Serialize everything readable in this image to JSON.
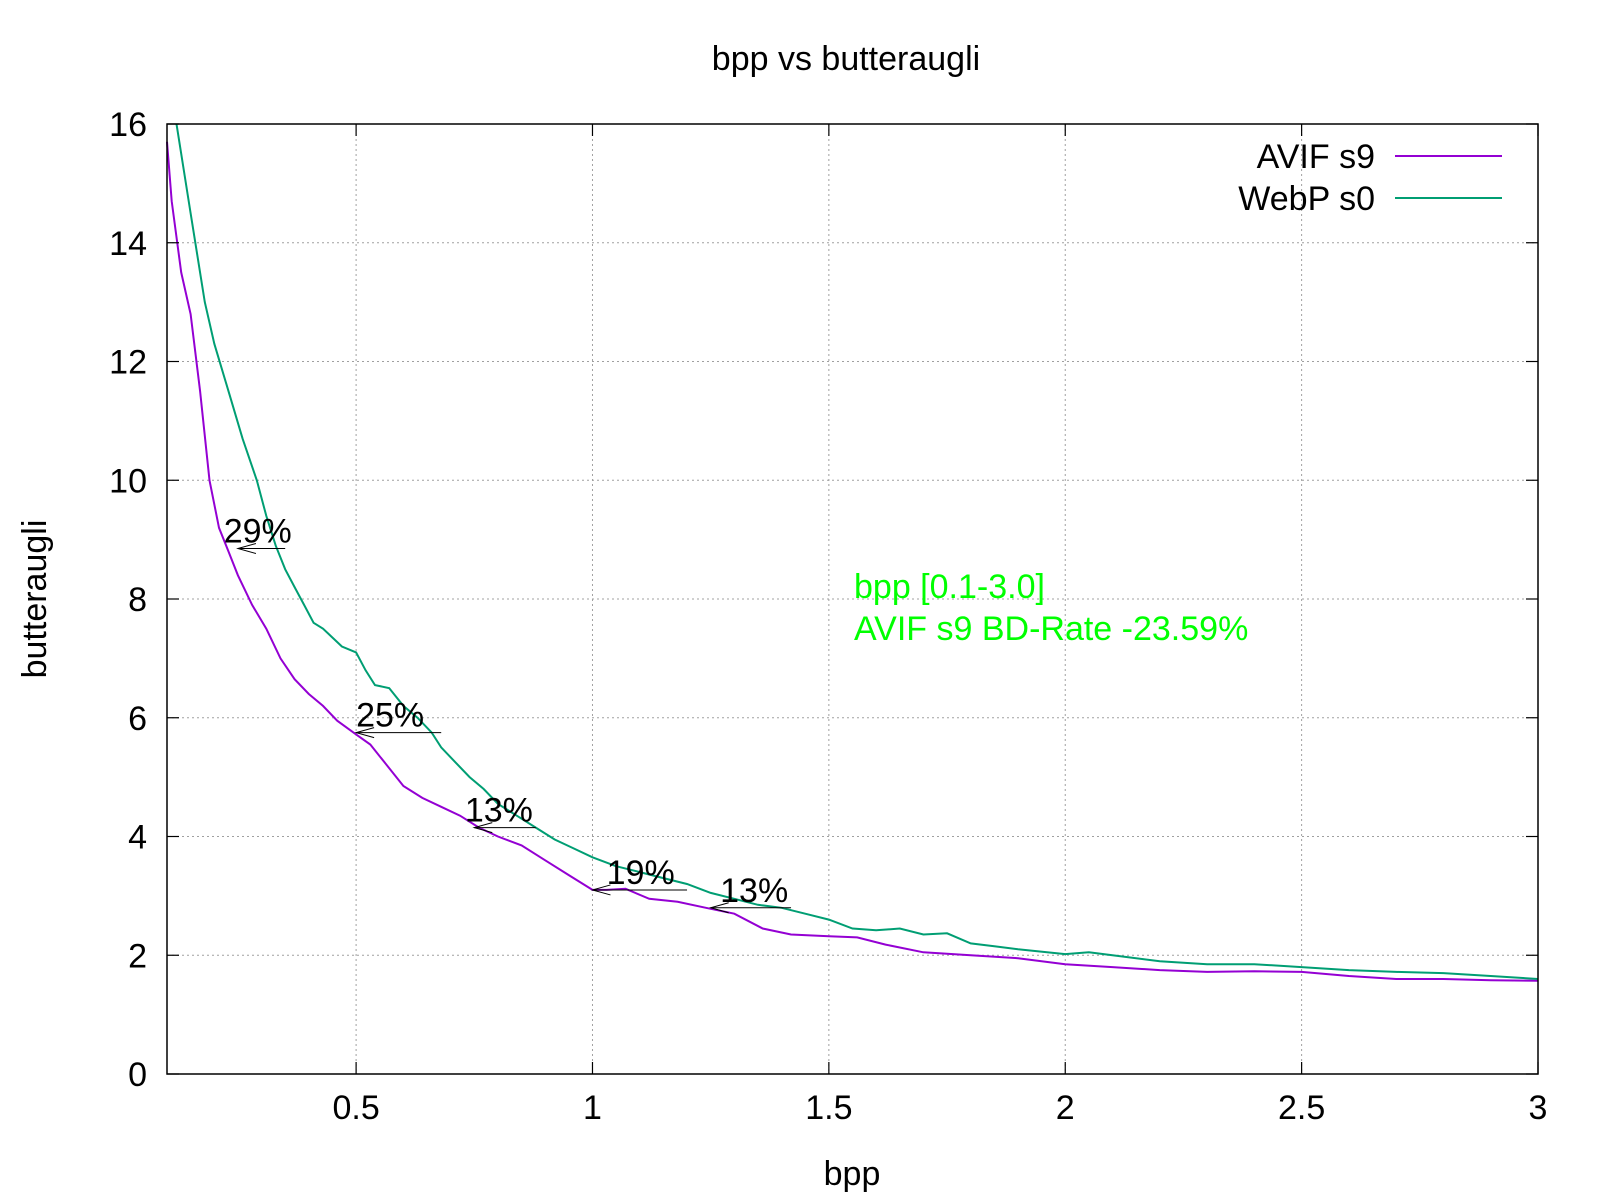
{
  "chart_data": {
    "type": "line",
    "title": "bpp vs butteraugli",
    "xlabel": "bpp",
    "ylabel": "butteraugli",
    "xlim": [
      0.1,
      3.0
    ],
    "ylim": [
      0,
      16
    ],
    "x_ticks": [
      0.5,
      1,
      1.5,
      2,
      2.5,
      3
    ],
    "x_tick_labels": [
      "0.5",
      "1",
      "1.5",
      "2",
      "2.5",
      "3"
    ],
    "y_ticks": [
      0,
      2,
      4,
      6,
      8,
      10,
      12,
      14,
      16
    ],
    "y_tick_labels": [
      "0",
      "2",
      "4",
      "6",
      "8",
      "10",
      "12",
      "14",
      "16"
    ],
    "grid": true,
    "legend_position": "top-right",
    "series": [
      {
        "name": "AVIF s9",
        "color": "#9400d3",
        "points": [
          [
            0.1,
            15.7
          ],
          [
            0.11,
            14.7
          ],
          [
            0.13,
            13.5
          ],
          [
            0.15,
            12.8
          ],
          [
            0.17,
            11.5
          ],
          [
            0.19,
            10.0
          ],
          [
            0.21,
            9.2
          ],
          [
            0.23,
            8.8
          ],
          [
            0.25,
            8.4
          ],
          [
            0.28,
            7.9
          ],
          [
            0.31,
            7.5
          ],
          [
            0.34,
            7.0
          ],
          [
            0.37,
            6.65
          ],
          [
            0.4,
            6.4
          ],
          [
            0.43,
            6.2
          ],
          [
            0.46,
            5.95
          ],
          [
            0.5,
            5.72
          ],
          [
            0.53,
            5.55
          ],
          [
            0.56,
            5.25
          ],
          [
            0.6,
            4.85
          ],
          [
            0.64,
            4.65
          ],
          [
            0.68,
            4.5
          ],
          [
            0.72,
            4.35
          ],
          [
            0.76,
            4.15
          ],
          [
            0.8,
            4.0
          ],
          [
            0.85,
            3.85
          ],
          [
            0.9,
            3.6
          ],
          [
            0.95,
            3.35
          ],
          [
            1.0,
            3.1
          ],
          [
            1.03,
            3.1
          ],
          [
            1.07,
            3.12
          ],
          [
            1.12,
            2.95
          ],
          [
            1.18,
            2.9
          ],
          [
            1.24,
            2.8
          ],
          [
            1.3,
            2.7
          ],
          [
            1.36,
            2.45
          ],
          [
            1.42,
            2.35
          ],
          [
            1.5,
            2.32
          ],
          [
            1.56,
            2.3
          ],
          [
            1.62,
            2.18
          ],
          [
            1.7,
            2.05
          ],
          [
            1.8,
            2.0
          ],
          [
            1.9,
            1.95
          ],
          [
            2.0,
            1.85
          ],
          [
            2.1,
            1.8
          ],
          [
            2.2,
            1.75
          ],
          [
            2.3,
            1.72
          ],
          [
            2.4,
            1.73
          ],
          [
            2.5,
            1.72
          ],
          [
            2.6,
            1.65
          ],
          [
            2.7,
            1.6
          ],
          [
            2.8,
            1.6
          ],
          [
            2.9,
            1.58
          ],
          [
            3.0,
            1.57
          ]
        ]
      },
      {
        "name": "WebP s0",
        "color": "#009e73",
        "points": [
          [
            0.12,
            16.0
          ],
          [
            0.15,
            14.5
          ],
          [
            0.18,
            13.0
          ],
          [
            0.2,
            12.3
          ],
          [
            0.23,
            11.5
          ],
          [
            0.26,
            10.7
          ],
          [
            0.29,
            10.0
          ],
          [
            0.31,
            9.4
          ],
          [
            0.33,
            8.9
          ],
          [
            0.35,
            8.5
          ],
          [
            0.37,
            8.2
          ],
          [
            0.39,
            7.9
          ],
          [
            0.41,
            7.6
          ],
          [
            0.43,
            7.5
          ],
          [
            0.45,
            7.35
          ],
          [
            0.47,
            7.2
          ],
          [
            0.5,
            7.1
          ],
          [
            0.52,
            6.8
          ],
          [
            0.54,
            6.55
          ],
          [
            0.57,
            6.5
          ],
          [
            0.6,
            6.2
          ],
          [
            0.63,
            6.0
          ],
          [
            0.66,
            5.75
          ],
          [
            0.68,
            5.5
          ],
          [
            0.71,
            5.25
          ],
          [
            0.74,
            5.0
          ],
          [
            0.77,
            4.8
          ],
          [
            0.8,
            4.55
          ],
          [
            0.84,
            4.35
          ],
          [
            0.88,
            4.15
          ],
          [
            0.92,
            3.95
          ],
          [
            0.96,
            3.8
          ],
          [
            1.0,
            3.65
          ],
          [
            1.05,
            3.5
          ],
          [
            1.1,
            3.4
          ],
          [
            1.15,
            3.3
          ],
          [
            1.2,
            3.2
          ],
          [
            1.25,
            3.05
          ],
          [
            1.3,
            2.95
          ],
          [
            1.35,
            2.85
          ],
          [
            1.4,
            2.8
          ],
          [
            1.45,
            2.7
          ],
          [
            1.5,
            2.6
          ],
          [
            1.55,
            2.45
          ],
          [
            1.6,
            2.42
          ],
          [
            1.65,
            2.45
          ],
          [
            1.7,
            2.35
          ],
          [
            1.75,
            2.37
          ],
          [
            1.8,
            2.2
          ],
          [
            1.85,
            2.15
          ],
          [
            1.9,
            2.1
          ],
          [
            2.0,
            2.02
          ],
          [
            2.05,
            2.05
          ],
          [
            2.1,
            2.0
          ],
          [
            2.2,
            1.9
          ],
          [
            2.3,
            1.85
          ],
          [
            2.4,
            1.85
          ],
          [
            2.5,
            1.8
          ],
          [
            2.6,
            1.75
          ],
          [
            2.7,
            1.72
          ],
          [
            2.8,
            1.7
          ],
          [
            2.9,
            1.65
          ],
          [
            3.0,
            1.6
          ]
        ]
      }
    ],
    "annotations": [
      {
        "text": "29%",
        "x": 0.22,
        "y": 8.85,
        "arrow_from": [
          0.35,
          8.85
        ],
        "arrow_to": [
          0.25,
          8.85
        ]
      },
      {
        "text": "25%",
        "x": 0.5,
        "y": 5.75,
        "arrow_from": [
          0.68,
          5.75
        ],
        "arrow_to": [
          0.5,
          5.75
        ]
      },
      {
        "text": "13%",
        "x": 0.73,
        "y": 4.15,
        "arrow_from": [
          0.88,
          4.15
        ],
        "arrow_to": [
          0.75,
          4.15
        ]
      },
      {
        "text": "19%",
        "x": 1.03,
        "y": 3.1,
        "arrow_from": [
          1.2,
          3.1
        ],
        "arrow_to": [
          1.0,
          3.1
        ]
      },
      {
        "text": "13%",
        "x": 1.27,
        "y": 2.8,
        "arrow_from": [
          1.42,
          2.8
        ],
        "arrow_to": [
          1.25,
          2.8
        ]
      }
    ],
    "summary": {
      "lines": [
        "bpp [0.1-3.0]",
        "AVIF s9 BD-Rate -23.59%"
      ],
      "color": "#00ff00"
    }
  }
}
